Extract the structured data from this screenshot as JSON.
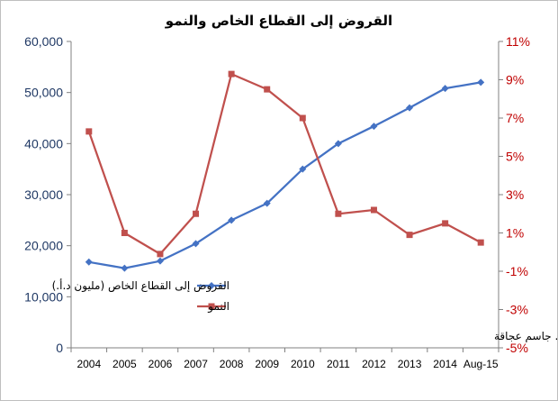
{
  "chart_data": {
    "type": "line",
    "title": "القروض إلى القطاع الخاص والنمو",
    "credit": "د. جاسم عجاقة",
    "categories": [
      "2004",
      "2005",
      "2006",
      "2007",
      "2008",
      "2009",
      "2010",
      "2011",
      "2012",
      "2013",
      "2014",
      "Aug-15"
    ],
    "series": [
      {
        "name": "القروض إلى القطاع الخاص (مليون د.أ.)",
        "axis": "left",
        "color": "#4472c4",
        "marker": "diamond",
        "values": [
          16800,
          15600,
          17000,
          20400,
          25000,
          28300,
          35000,
          40000,
          43400,
          47000,
          50800,
          52000
        ]
      },
      {
        "name": "النمو",
        "axis": "right",
        "color": "#c0504d",
        "marker": "square",
        "values": [
          6.3,
          1.0,
          -0.1,
          2.0,
          9.3,
          8.5,
          7.0,
          2.0,
          2.2,
          0.9,
          1.5,
          0.5
        ]
      }
    ],
    "y_left": {
      "min": 0,
      "max": 60000,
      "ticks": [
        0,
        10000,
        20000,
        30000,
        40000,
        50000,
        60000
      ],
      "tick_labels": [
        "0",
        "10,000",
        "20,000",
        "30,000",
        "40,000",
        "50,000",
        "60,000"
      ],
      "color": "#1f3864"
    },
    "y_right": {
      "min": -5,
      "max": 11,
      "ticks": [
        -5,
        -3,
        -1,
        1,
        3,
        5,
        7,
        9,
        11
      ],
      "tick_labels": [
        "-5%",
        "-3%",
        "-1%",
        "1%",
        "3%",
        "5%",
        "7%",
        "9%",
        "11%"
      ],
      "color": "#c00000"
    },
    "grid": false,
    "legend_position": "center-right"
  }
}
